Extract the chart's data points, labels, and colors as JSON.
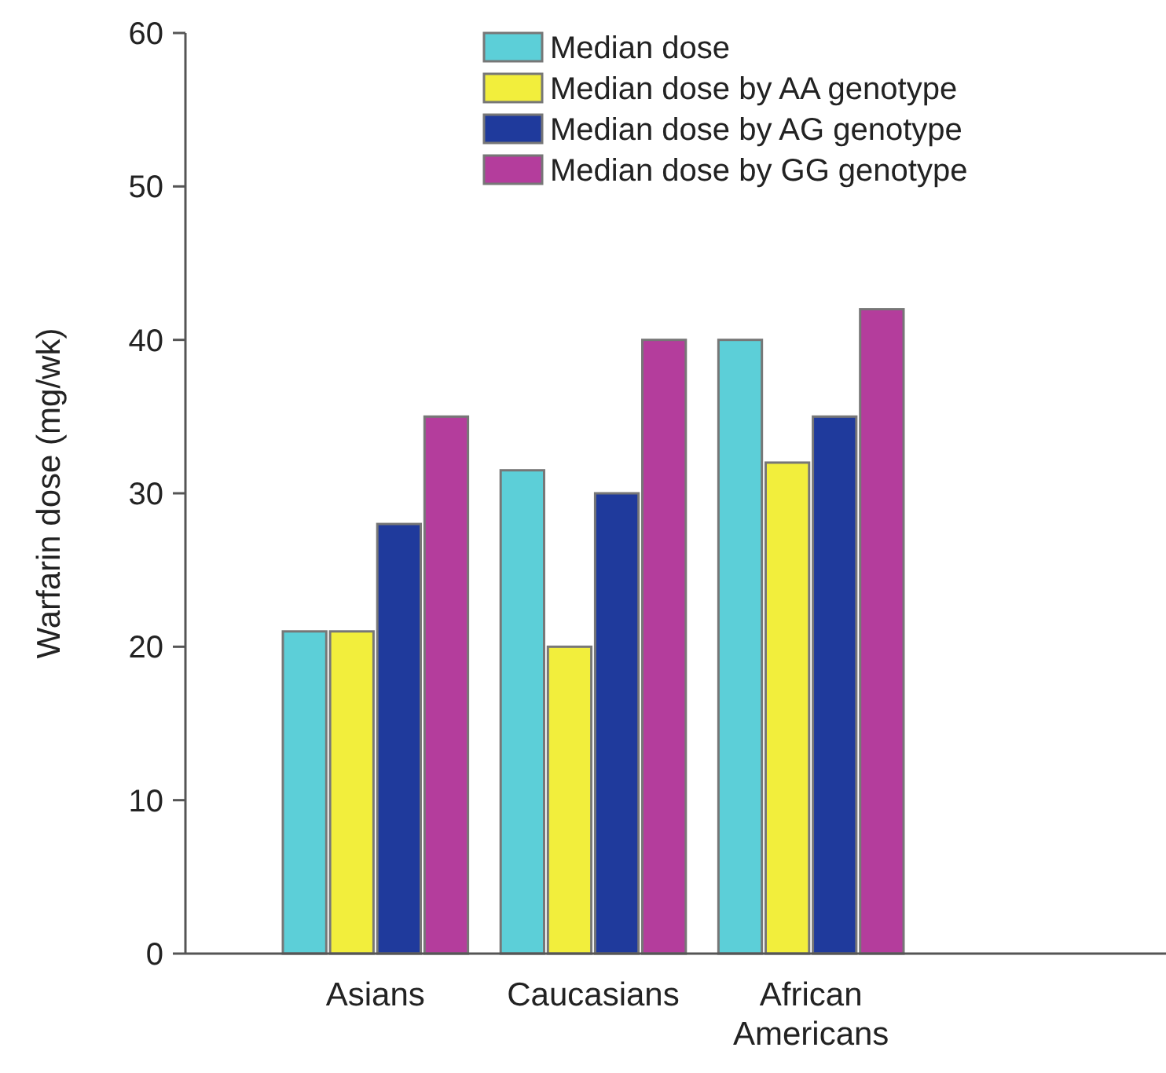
{
  "chart_data": {
    "type": "bar",
    "ylabel": "Warfarin dose (mg/wk)",
    "categories": [
      "Asians",
      "Caucasians",
      "African Americans"
    ],
    "series": [
      {
        "name": "Median dose",
        "color": "#5ccfd8",
        "values": [
          21,
          31.5,
          40
        ]
      },
      {
        "name": "Median dose by AA genotype",
        "color": "#f2ee3c",
        "values": [
          21,
          20,
          32
        ]
      },
      {
        "name": "Median dose by AG genotype",
        "color": "#1f3a9c",
        "values": [
          28,
          30,
          35
        ]
      },
      {
        "name": "Median dose by GG genotype",
        "color": "#b43d9c",
        "values": [
          35,
          40,
          42
        ]
      }
    ],
    "ylim": [
      0,
      60
    ],
    "yticks": [
      0,
      10,
      20,
      30,
      40,
      50,
      60
    ],
    "grid": false,
    "legend": "top right"
  }
}
